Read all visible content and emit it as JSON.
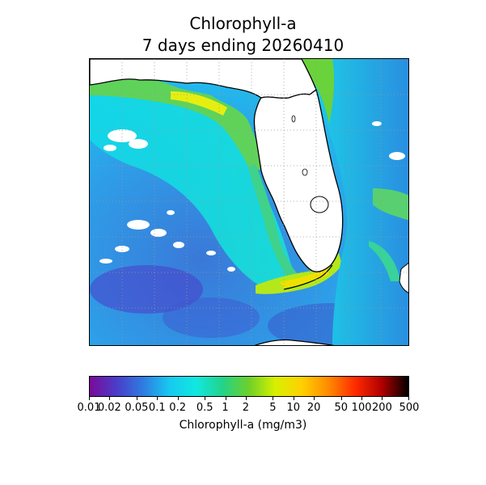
{
  "title": {
    "line1": "Chlorophyll-a",
    "line2": "7 days ending 20260410"
  },
  "colorbar": {
    "label": "Chlorophyll-a (mg/m3)",
    "scale": "log",
    "range": [
      0.01,
      500
    ],
    "ticks": [
      {
        "value": 0.01,
        "label": "0.01"
      },
      {
        "value": 0.02,
        "label": "0.02"
      },
      {
        "value": 0.05,
        "label": "0.05"
      },
      {
        "value": 0.1,
        "label": "0.1"
      },
      {
        "value": 0.2,
        "label": "0.2"
      },
      {
        "value": 0.5,
        "label": "0.5"
      },
      {
        "value": 1,
        "label": "1"
      },
      {
        "value": 2,
        "label": "2"
      },
      {
        "value": 5,
        "label": "5"
      },
      {
        "value": 10,
        "label": "10"
      },
      {
        "value": 20,
        "label": "20"
      },
      {
        "value": 50,
        "label": "50"
      },
      {
        "value": 100,
        "label": "100"
      },
      {
        "value": 200,
        "label": "200"
      },
      {
        "value": 500,
        "label": "500"
      }
    ],
    "colors": [
      "#7a0a9a",
      "#4b3cc8",
      "#2f7be0",
      "#18c8f0",
      "#11e8e0",
      "#22d38a",
      "#6fd02a",
      "#d8f000",
      "#ffd000",
      "#ff8a00",
      "#ff2a00",
      "#b00000",
      "#000000"
    ]
  },
  "map": {
    "land_color": "#ffffff",
    "coast_color": "#000000",
    "grid": "dotted"
  }
}
